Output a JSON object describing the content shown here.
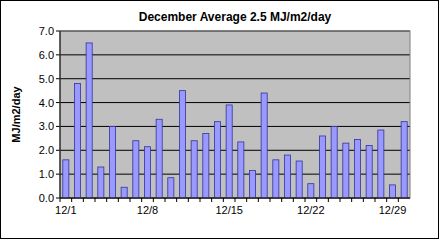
{
  "chart_data": {
    "type": "bar",
    "title": "December Average 2.5 MJ/m2/day",
    "y_label": "MJ/m2/day",
    "categories": [
      "12/1",
      null,
      null,
      null,
      null,
      null,
      null,
      "12/8",
      null,
      null,
      null,
      null,
      null,
      null,
      "12/15",
      null,
      null,
      null,
      null,
      null,
      null,
      "12/22",
      null,
      null,
      null,
      null,
      null,
      null,
      "12/29",
      null
    ],
    "values": [
      1.6,
      4.8,
      6.5,
      1.3,
      3.0,
      0.45,
      2.4,
      2.15,
      3.3,
      0.85,
      4.5,
      2.4,
      2.7,
      3.2,
      3.9,
      2.35,
      1.15,
      4.4,
      1.6,
      1.8,
      1.55,
      0.6,
      2.6,
      3.0,
      2.3,
      2.45,
      2.2,
      2.85,
      0.55,
      3.2
    ],
    "color": "#9999ff",
    "ylim": [
      0,
      7
    ],
    "yticks": [
      {
        "value": 0,
        "label": "0.0"
      },
      {
        "value": 1,
        "label": "1.0"
      },
      {
        "value": 2,
        "label": "2.0"
      },
      {
        "value": 3,
        "label": "3.0"
      },
      {
        "value": 4,
        "label": "4.0"
      },
      {
        "value": 5,
        "label": "5.0"
      },
      {
        "value": 6,
        "label": "6.0"
      },
      {
        "value": 7,
        "label": "7.0"
      }
    ],
    "grid": true
  }
}
